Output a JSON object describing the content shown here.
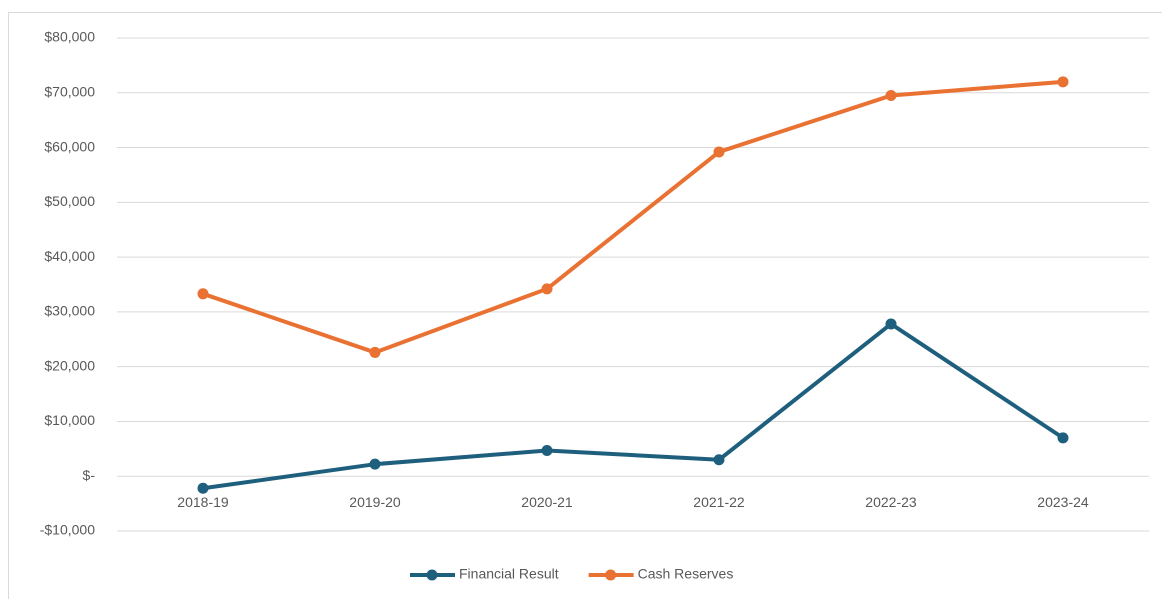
{
  "chart_data": {
    "type": "line",
    "categories": [
      "2018-19",
      "2019-20",
      "2020-21",
      "2021-22",
      "2022-23",
      "2023-24"
    ],
    "series": [
      {
        "name": "Financial Result",
        "color": "#1f5f7e",
        "values": [
          -2200,
          2200,
          4700,
          3000,
          27800,
          7000
        ]
      },
      {
        "name": "Cash Reserves",
        "color": "#e97132",
        "values": [
          33300,
          22600,
          34200,
          59200,
          69500,
          72000
        ]
      }
    ],
    "ylim": [
      -10000,
      80000
    ],
    "yticks": [
      {
        "value": -10000,
        "label": "-$10,000"
      },
      {
        "value": 0,
        "label": "$-"
      },
      {
        "value": 10000,
        "label": "$10,000"
      },
      {
        "value": 20000,
        "label": "$20,000"
      },
      {
        "value": 30000,
        "label": "$30,000"
      },
      {
        "value": 40000,
        "label": "$40,000"
      },
      {
        "value": 50000,
        "label": "$50,000"
      },
      {
        "value": 60000,
        "label": "$60,000"
      },
      {
        "value": 70000,
        "label": "$70,000"
      },
      {
        "value": 80000,
        "label": "$80,000"
      }
    ],
    "grid": true,
    "legend": "bottom"
  }
}
